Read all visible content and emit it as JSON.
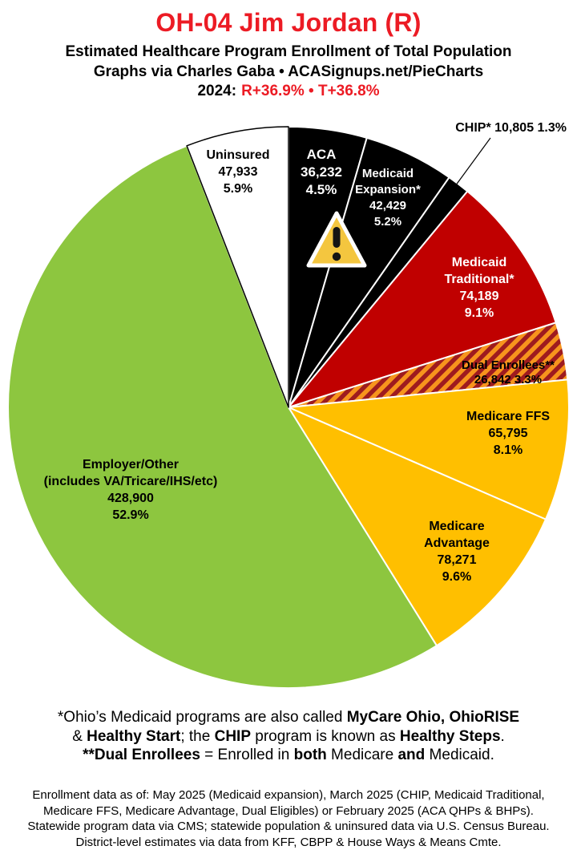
{
  "theme": {
    "accent_red": "#EC1B24",
    "pie_black": "#000000",
    "pie_dark_red": "#C00000",
    "pie_gold": "#FFBF00",
    "pie_green": "#8DC63F",
    "pie_white": "#FFFFFF",
    "hatch_bg": "#F7941D",
    "hatch_stripe": "#9E1B1F",
    "warning_yellow": "#F4C63F"
  },
  "header": {
    "title": "OH-04 Jim Jordan (R)",
    "subtitle": "Estimated Healthcare Program Enrollment of Total Population",
    "byline": "Graphs via Charles Gaba   •   ACASignups.net/PieCharts",
    "year_label": "2024:",
    "partisan_values": "R+36.9%  •  T+36.8%"
  },
  "chart_data": {
    "type": "pie",
    "title": "Estimated Healthcare Program Enrollment of Total Population",
    "start_angle_deg": 0,
    "direction": "clockwise",
    "legend_position": "labels-on-slices",
    "hatch_colors": {
      "bg": "#F7941D",
      "stripe": "#9E1B1F"
    },
    "slices": [
      {
        "id": "aca",
        "name": "ACA",
        "value": 36232,
        "pct": 4.5,
        "color": "#000000",
        "text_color": "#FFFFFF",
        "label_lines": [
          "ACA",
          "36,232",
          "4.5%"
        ],
        "note": "warning-triangle icon on this slice"
      },
      {
        "id": "medicaid_expansion",
        "name": "Medicaid Expansion*",
        "value": 42429,
        "pct": 5.2,
        "color": "#000000",
        "text_color": "#FFFFFF",
        "label_lines": [
          "Medicaid",
          "Expansion*",
          "42,429",
          "5.2%"
        ]
      },
      {
        "id": "chip",
        "name": "CHIP*",
        "value": 10805,
        "pct": 1.3,
        "color": "#000000",
        "text_color": "#000000",
        "label_outside": true,
        "label_lines": [
          "CHIP* 10,805 1.3%"
        ]
      },
      {
        "id": "medicaid_traditional",
        "name": "Medicaid Traditional*",
        "value": 74189,
        "pct": 9.1,
        "color": "#C00000",
        "text_color": "#FFFFFF",
        "label_lines": [
          "Medicaid",
          "Traditional*",
          "74,189",
          "9.1%"
        ]
      },
      {
        "id": "dual_enrollees",
        "name": "Dual Enrollees**",
        "value": 26842,
        "pct": 3.3,
        "color": "hatch",
        "text_color": "#000000",
        "label_lines": [
          "Dual Enrollees**",
          "26,842 3.3%"
        ]
      },
      {
        "id": "medicare_ffs",
        "name": "Medicare FFS",
        "value": 65795,
        "pct": 8.1,
        "color": "#FFBF00",
        "text_color": "#000000",
        "label_lines": [
          "Medicare FFS",
          "65,795",
          "8.1%"
        ]
      },
      {
        "id": "medicare_advantage",
        "name": "Medicare Advantage",
        "value": 78271,
        "pct": 9.6,
        "color": "#FFBF00",
        "text_color": "#000000",
        "label_lines": [
          "Medicare",
          "Advantage",
          "78,271",
          "9.6%"
        ]
      },
      {
        "id": "employer_other",
        "name": "Employer/Other (includes VA/Tricare/IHS/etc)",
        "value": 428900,
        "pct": 52.9,
        "color": "#8DC63F",
        "text_color": "#000000",
        "label_lines": [
          "Employer/Other",
          "(includes VA/Tricare/IHS/etc)",
          "428,900",
          "52.9%"
        ]
      },
      {
        "id": "uninsured",
        "name": "Uninsured",
        "value": 47933,
        "pct": 5.9,
        "color": "#FFFFFF",
        "text_color": "#000000",
        "label_lines": [
          "Uninsured",
          "47,933",
          "5.9%"
        ]
      }
    ]
  },
  "footnotes": {
    "lines": [
      [
        {
          "t": "*Ohio’s Medicaid programs are also called ",
          "b": false
        },
        {
          "t": "MyCare Ohio, OhioRISE",
          "b": true
        }
      ],
      [
        {
          "t": "& ",
          "b": false
        },
        {
          "t": "Healthy Start",
          "b": true
        },
        {
          "t": "; the ",
          "b": false
        },
        {
          "t": "CHIP",
          "b": true
        },
        {
          "t": " program is known as ",
          "b": false
        },
        {
          "t": "Healthy Steps",
          "b": true
        },
        {
          "t": ".",
          "b": false
        }
      ],
      [
        {
          "t": "**Dual Enrollees",
          "b": true
        },
        {
          "t": " = Enrolled in ",
          "b": false
        },
        {
          "t": "both",
          "b": true
        },
        {
          "t": " Medicare ",
          "b": false
        },
        {
          "t": "and",
          "b": true
        },
        {
          "t": " Medicaid.",
          "b": false
        }
      ]
    ]
  },
  "source_block": [
    "Enrollment data as of: May 2025 (Medicaid expansion), March 2025 (CHIP, Medicaid Traditional,",
    "Medicare FFS, Medicare Advantage, Dual Eligibles) or February 2025 (ACA QHPs & BHPs).",
    "Statewide program data via CMS; statewide population & uninsured data via U.S. Census Bureau.",
    "District-level estimates via data from KFF, CBPP & House Ways & Means Cmte."
  ]
}
